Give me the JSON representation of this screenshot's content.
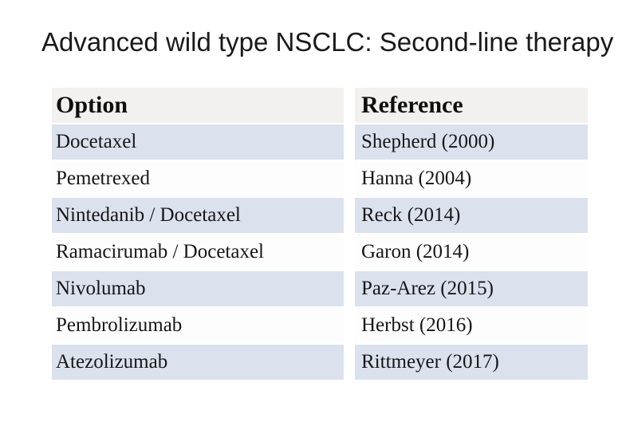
{
  "title": "Advanced wild type NSCLC: Second-line therapy",
  "table": {
    "columns": {
      "option": "Option",
      "reference": "Reference"
    },
    "rows": [
      {
        "option": "Docetaxel",
        "reference": "Shepherd (2000)"
      },
      {
        "option": "Pemetrexed",
        "reference": "Hanna (2004)"
      },
      {
        "option": "Nintedanib / Docetaxel",
        "reference": "Reck (2014)"
      },
      {
        "option": "Ramacirumab / Docetaxel",
        "reference": "Garon (2014)"
      },
      {
        "option": "Nivolumab",
        "reference": "Paz-Arez (2015)"
      },
      {
        "option": "Pembrolizumab",
        "reference": "Herbst (2016)"
      },
      {
        "option": "Atezolizumab",
        "reference": "Rittmeyer (2017)"
      }
    ]
  },
  "colors": {
    "header_row_bg": "#f2f1ef",
    "shaded_row_bg": "#dce1ee",
    "plain_row_bg": "#fdfdfd",
    "text": "#161616",
    "title_text": "#1a1a1a",
    "slide_bg": "#ffffff"
  }
}
